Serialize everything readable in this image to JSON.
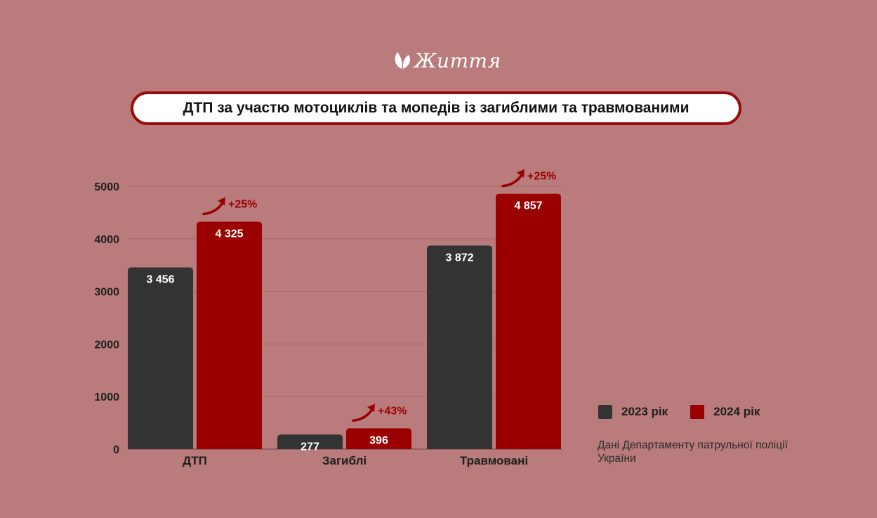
{
  "logo": {
    "name": "Життя",
    "icon": "leaf-icon"
  },
  "title": "ДТП за участю мотоциклів та мопедів із загиблими та травмованими",
  "colors": {
    "background": "#b97b7b",
    "series_2023": "#333333",
    "series_2024": "#9b0000",
    "title_border": "#9b0b0b",
    "growth": "#9b0000"
  },
  "chart_data": {
    "type": "bar",
    "categories": [
      "ДТП",
      "Загиблі",
      "Травмовані"
    ],
    "series": [
      {
        "name": "2023 рік",
        "values": [
          3456,
          277,
          3872
        ],
        "labels": [
          "3 456",
          "277",
          "3 872"
        ]
      },
      {
        "name": "2024 рік",
        "values": [
          4325,
          396,
          4857
        ],
        "labels": [
          "4 325",
          "396",
          "4 857"
        ]
      }
    ],
    "growth": [
      "+25%",
      "+43%",
      "+25%"
    ],
    "ylim": [
      0,
      5000
    ],
    "yticks": [
      0,
      1000,
      2000,
      3000,
      4000,
      5000
    ],
    "ytick_labels": [
      "0",
      "1000",
      "2000",
      "3000",
      "4000",
      "5000"
    ],
    "title": "ДТП за участю мотоциклів та мопедів із загиблими та травмованими",
    "xlabel": "",
    "ylabel": "",
    "grid": true,
    "legend": "right"
  },
  "legend": {
    "items": [
      "2023 рік",
      "2024 рік"
    ]
  },
  "source": "Дані Департаменту патрульної поліції України"
}
